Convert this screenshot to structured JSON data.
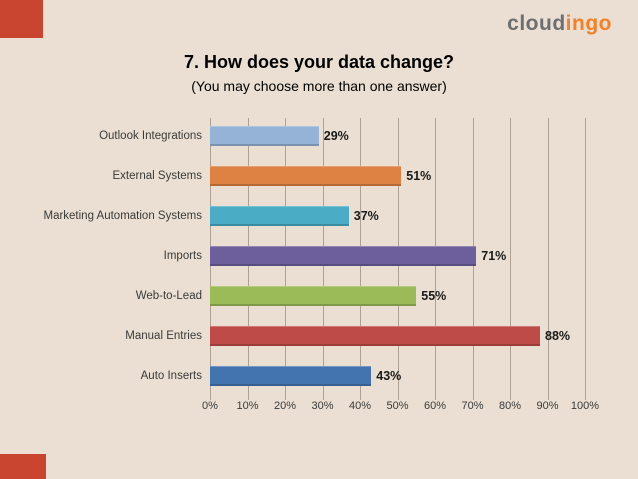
{
  "slide": {
    "background": "#EADFD2",
    "accent_red": "#C9452F"
  },
  "logo": {
    "part1": "cloud",
    "part2": "ingo",
    "part1_color": "#6D6E71",
    "part2_color": "#F58025"
  },
  "header": {
    "title": "7. How does your data change?",
    "subtitle": "(You may choose more than one answer)"
  },
  "chart_data": {
    "type": "bar",
    "orientation": "horizontal",
    "title": "7. How does your data change?",
    "subtitle": "(You may choose more than one answer)",
    "categories": [
      "Outlook Integrations",
      "External Systems",
      "Marketing Automation Systems",
      "Imports",
      "Web-to-Lead",
      "Manual Entries",
      "Auto Inserts"
    ],
    "values": [
      29,
      51,
      37,
      71,
      55,
      88,
      43
    ],
    "value_labels": [
      "29%",
      "51%",
      "37%",
      "71%",
      "55%",
      "88%",
      "43%"
    ],
    "bar_colors": [
      "#95B3D7",
      "#DD8243",
      "#4BACC6",
      "#6C5F9B",
      "#9BBB59",
      "#BE4B48",
      "#4474B0"
    ],
    "xlim": [
      0,
      100
    ],
    "x_ticks": [
      "0%",
      "10%",
      "20%",
      "30%",
      "40%",
      "50%",
      "60%",
      "70%",
      "80%",
      "90%",
      "100%"
    ],
    "grid": true,
    "legend": "none",
    "gridline_color": "#ACA193"
  }
}
